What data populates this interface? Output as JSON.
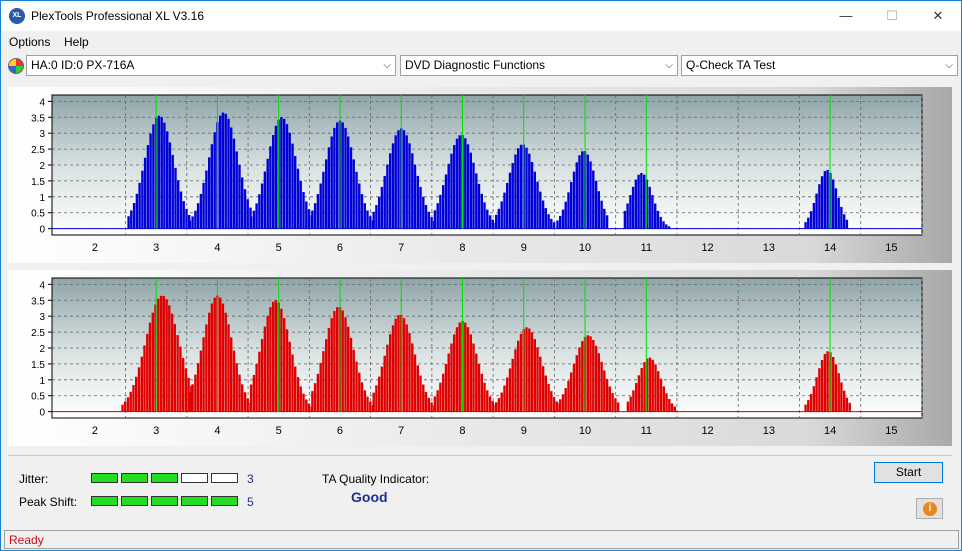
{
  "window": {
    "title": "PlexTools Professional XL V3.16",
    "app_icon_text": "XL",
    "minimize": "—",
    "maximize": "☐",
    "close": "✕"
  },
  "menu": {
    "options": "Options",
    "help": "Help"
  },
  "toolbar": {
    "drive": "HA:0 ID:0  PX-716A",
    "function": "DVD Diagnostic Functions",
    "test": "Q-Check TA Test",
    "arrow": "⌵"
  },
  "chart_data": [
    {
      "type": "bar",
      "name": "land-jitter-histogram",
      "color": "#0000d8",
      "x_ticks": [
        2,
        3,
        4,
        5,
        6,
        7,
        8,
        9,
        10,
        11,
        12,
        13,
        14,
        15
      ],
      "y_ticks": [
        0,
        0.5,
        1,
        1.5,
        2,
        2.5,
        3,
        3.5,
        4
      ],
      "y_tick_labels": [
        "0",
        "0.5",
        "1",
        "1.5",
        "2",
        "2.5",
        "3",
        "3.5",
        "4"
      ],
      "xlim": [
        1.3,
        15.5
      ],
      "ylim": [
        -0.2,
        4.2
      ],
      "grid": true,
      "marker_lines_x": [
        3,
        4,
        5,
        6,
        7,
        8,
        9,
        10,
        11,
        14
      ],
      "peaks": [
        {
          "center": 3.05,
          "height": 3.55,
          "left": 2.55,
          "right": 3.55
        },
        {
          "center": 4.1,
          "height": 3.65,
          "left": 3.55,
          "right": 4.55
        },
        {
          "center": 5.05,
          "height": 3.5,
          "left": 4.55,
          "right": 5.55
        },
        {
          "center": 6.0,
          "height": 3.4,
          "left": 5.55,
          "right": 6.55
        },
        {
          "center": 7.0,
          "height": 3.15,
          "left": 6.55,
          "right": 7.55
        },
        {
          "center": 7.98,
          "height": 2.95,
          "left": 7.55,
          "right": 8.55
        },
        {
          "center": 8.98,
          "height": 2.65,
          "left": 8.55,
          "right": 9.5
        },
        {
          "center": 9.98,
          "height": 2.45,
          "left": 9.55,
          "right": 10.4
        },
        {
          "center": 10.92,
          "height": 1.75,
          "left": 10.65,
          "right": 11.4
        },
        {
          "center": 13.95,
          "height": 1.85,
          "left": 13.6,
          "right": 14.3
        }
      ]
    },
    {
      "type": "bar",
      "name": "pit-jitter-histogram",
      "color": "#e00000",
      "x_ticks": [
        2,
        3,
        4,
        5,
        6,
        7,
        8,
        9,
        10,
        11,
        12,
        13,
        14,
        15
      ],
      "y_ticks": [
        0,
        0.5,
        1,
        1.5,
        2,
        2.5,
        3,
        3.5,
        4
      ],
      "y_tick_labels": [
        "0",
        "0.5",
        "1",
        "1.5",
        "2",
        "2.5",
        "3",
        "3.5",
        "4"
      ],
      "xlim": [
        1.3,
        15.5
      ],
      "ylim": [
        -0.2,
        4.2
      ],
      "grid": true,
      "marker_lines_x": [
        3,
        4,
        5,
        6,
        7,
        8,
        9,
        10,
        11,
        14
      ],
      "peaks": [
        {
          "center": 3.1,
          "height": 3.65,
          "left": 2.45,
          "right": 3.6
        },
        {
          "center": 4.0,
          "height": 3.65,
          "left": 3.55,
          "right": 4.55
        },
        {
          "center": 4.95,
          "height": 3.5,
          "left": 4.55,
          "right": 5.55
        },
        {
          "center": 5.98,
          "height": 3.3,
          "left": 5.55,
          "right": 6.55
        },
        {
          "center": 6.98,
          "height": 3.05,
          "left": 6.55,
          "right": 7.55
        },
        {
          "center": 8.0,
          "height": 2.85,
          "left": 7.55,
          "right": 8.55
        },
        {
          "center": 9.05,
          "height": 2.65,
          "left": 8.55,
          "right": 9.55
        },
        {
          "center": 10.05,
          "height": 2.4,
          "left": 9.55,
          "right": 10.55
        },
        {
          "center": 11.05,
          "height": 1.7,
          "left": 10.7,
          "right": 11.5
        },
        {
          "center": 13.97,
          "height": 1.9,
          "left": 13.6,
          "right": 14.35
        }
      ]
    }
  ],
  "results": {
    "jitter_label": "Jitter:",
    "jitter_value": "3",
    "jitter_level": 3,
    "peak_shift_label": "Peak Shift:",
    "peak_shift_value": "5",
    "peak_shift_level": 5,
    "meter_cells": 5,
    "ta_label": "TA Quality Indicator:",
    "ta_value": "Good"
  },
  "buttons": {
    "start": "Start",
    "info": "i"
  },
  "status": {
    "text": "Ready"
  }
}
